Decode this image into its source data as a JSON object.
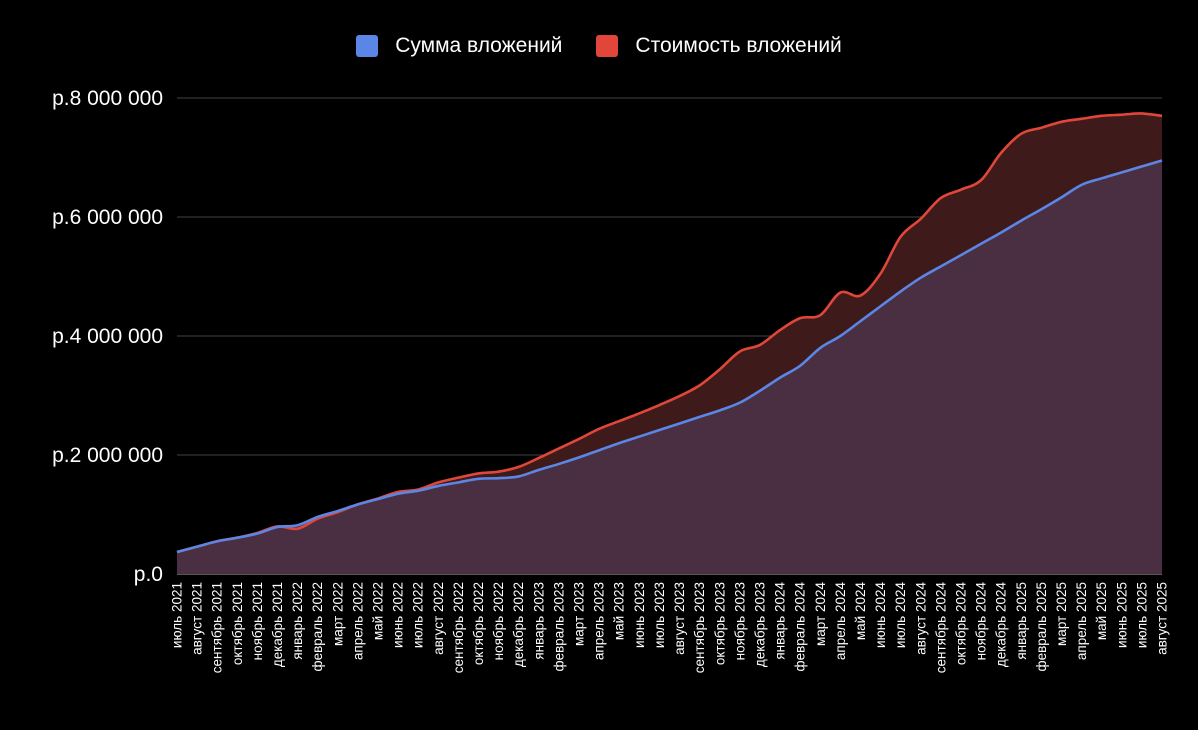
{
  "chart_data": {
    "type": "area",
    "legend_position": "top",
    "grid": true,
    "ylim": [
      0,
      8000000
    ],
    "y_ticks": [
      {
        "value": 0,
        "label": "р.0"
      },
      {
        "value": 2000000,
        "label": "р.2 000 000"
      },
      {
        "value": 4000000,
        "label": "р.4 000 000"
      },
      {
        "value": 6000000,
        "label": "р.6 000 000"
      },
      {
        "value": 8000000,
        "label": "р.8 000 000"
      }
    ],
    "categories": [
      "июль 2021",
      "август 2021",
      "сентябрь 2021",
      "октябрь 2021",
      "ноябрь 2021",
      "декабрь 2021",
      "январь 2022",
      "февраль 2022",
      "март 2022",
      "апрель 2022",
      "май 2022",
      "июнь 2022",
      "июль 2022",
      "август 2022",
      "сентябрь 2022",
      "октябрь 2022",
      "ноябрь 2022",
      "декабрь 2022",
      "январь 2023",
      "февраль 2023",
      "март 2023",
      "апрель 2023",
      "май 2023",
      "июнь 2023",
      "июль 2023",
      "август 2023",
      "сентябрь 2023",
      "октябрь 2023",
      "ноябрь 2023",
      "декабрь 2023",
      "январь 2024",
      "февраль 2024",
      "март 2024",
      "апрель 2024",
      "май 2024",
      "июнь 2024",
      "июль 2024",
      "август 2024",
      "сентябрь 2024",
      "октябрь 2024",
      "ноябрь 2024",
      "декабрь 2024",
      "январь 2025",
      "февраль 2025",
      "март 2025",
      "апрель 2025",
      "май 2025",
      "июнь 2025",
      "июль 2025",
      "август 2025"
    ],
    "series": [
      {
        "name": "Сумма вложений",
        "color": "#5b86e5",
        "fill": "#4a2f42",
        "values": [
          370000,
          460000,
          550000,
          610000,
          680000,
          790000,
          820000,
          960000,
          1060000,
          1170000,
          1260000,
          1350000,
          1400000,
          1480000,
          1540000,
          1600000,
          1610000,
          1640000,
          1750000,
          1850000,
          1960000,
          2080000,
          2200000,
          2310000,
          2420000,
          2530000,
          2640000,
          2750000,
          2880000,
          3080000,
          3300000,
          3500000,
          3800000,
          4000000,
          4250000,
          4500000,
          4750000,
          4980000,
          5170000,
          5360000,
          5550000,
          5740000,
          5940000,
          6130000,
          6330000,
          6540000,
          6650000,
          6750000,
          6850000,
          6950000
        ]
      },
      {
        "name": "Стоимость вложений",
        "color": "#e0473a",
        "fill": "#3f1a1a",
        "values": [
          370000,
          460000,
          550000,
          610000,
          690000,
          800000,
          760000,
          930000,
          1040000,
          1170000,
          1270000,
          1380000,
          1420000,
          1540000,
          1620000,
          1690000,
          1720000,
          1800000,
          1950000,
          2110000,
          2270000,
          2440000,
          2570000,
          2700000,
          2840000,
          2990000,
          3170000,
          3440000,
          3740000,
          3850000,
          4100000,
          4300000,
          4350000,
          4730000,
          4680000,
          5050000,
          5670000,
          5970000,
          6320000,
          6460000,
          6620000,
          7080000,
          7400000,
          7500000,
          7600000,
          7650000,
          7700000,
          7720000,
          7740000,
          7700000
        ]
      }
    ]
  }
}
